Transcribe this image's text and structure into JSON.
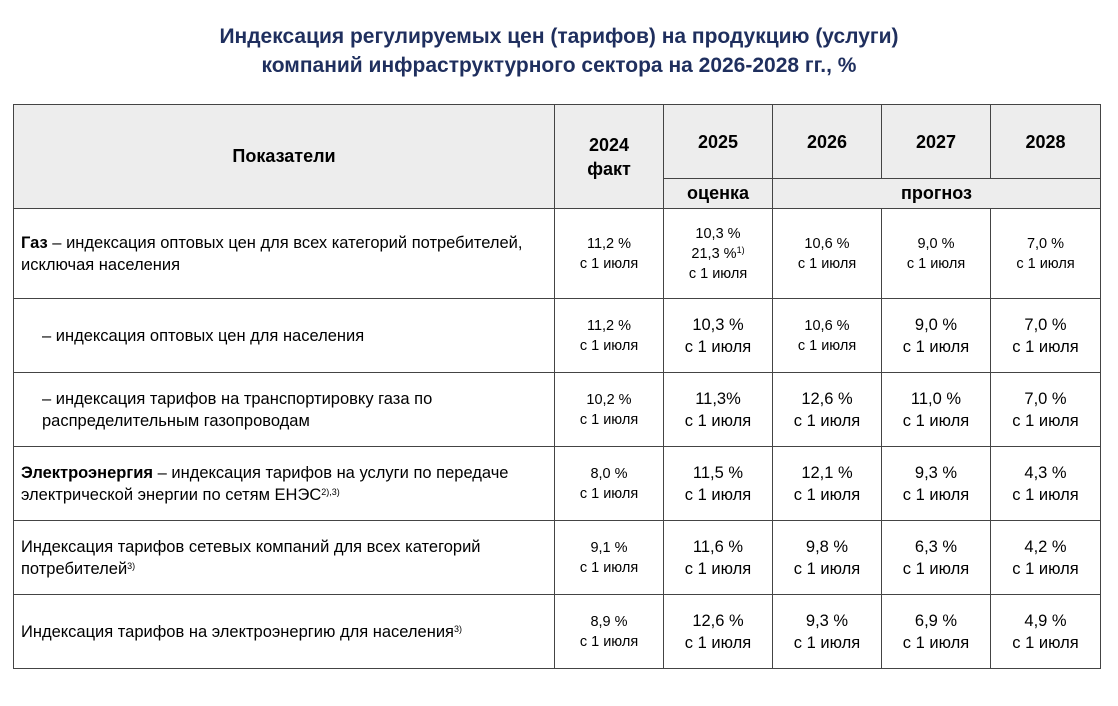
{
  "title": {
    "line1": "Индексация регулируемых цен (тарифов) на продукцию (услуги)",
    "line2": "компаний инфраструктурного сектора на 2026-2028 гг., %"
  },
  "header": {
    "indicators": "Показатели",
    "years": [
      {
        "year": "2024",
        "note": "факт"
      },
      {
        "year": "2025",
        "note": ""
      },
      {
        "year": "2026",
        "note": ""
      },
      {
        "year": "2027",
        "note": ""
      },
      {
        "year": "2028",
        "note": ""
      }
    ],
    "estimate": "оценка",
    "forecast": "прогноз"
  },
  "rows": [
    {
      "bold": "Газ",
      "text": " – индексация оптовых цен для всех категорий потребителей, исключая населения",
      "sup": "",
      "cells": [
        {
          "lines": [
            "11,2 %",
            "с 1 июля"
          ]
        },
        {
          "lines": [
            "10,3 %",
            "21,3 %",
            "с 1 июля"
          ],
          "sup": "1)"
        },
        {
          "lines": [
            "10,6 %",
            "с 1 июля"
          ]
        },
        {
          "lines": [
            "9,0 %",
            "с 1 июля"
          ]
        },
        {
          "lines": [
            "7,0 %",
            "с 1 июля"
          ]
        }
      ]
    },
    {
      "bold": "",
      "text": "– индексация оптовых цен для населения",
      "sup": "",
      "cells": [
        {
          "lines": [
            "11,2 %",
            "с 1 июля"
          ]
        },
        {
          "lines": [
            "10,3 %",
            "с 1 июля"
          ]
        },
        {
          "lines": [
            "10,6 %",
            "с 1 июля"
          ]
        },
        {
          "lines": [
            "9,0 %",
            "с 1 июля"
          ]
        },
        {
          "lines": [
            "7,0 %",
            "с 1 июля"
          ]
        }
      ]
    },
    {
      "bold": "",
      "text": "– индексация тарифов на транспортировку газа по распределительным газопроводам",
      "sup": "",
      "cells": [
        {
          "lines": [
            "10,2 %",
            "с 1 июля"
          ]
        },
        {
          "lines": [
            "11,3%",
            "с 1 июля"
          ]
        },
        {
          "lines": [
            "12,6 %",
            "с 1 июля"
          ]
        },
        {
          "lines": [
            "11,0 %",
            "с 1 июля"
          ]
        },
        {
          "lines": [
            "7,0 %",
            "с 1 июля"
          ]
        }
      ]
    },
    {
      "bold": "Электроэнергия",
      "text": " – индексация тарифов на услуги по передаче электрической энергии по сетям ЕНЭС",
      "sup": "2),3)",
      "cells": [
        {
          "lines": [
            "8,0 %",
            "с 1 июля"
          ]
        },
        {
          "lines": [
            "11,5 %",
            "с 1 июля"
          ]
        },
        {
          "lines": [
            "12,1 %",
            "с 1 июля"
          ]
        },
        {
          "lines": [
            "9,3 %",
            "с 1 июля"
          ]
        },
        {
          "lines": [
            "4,3 %",
            "с 1 июля"
          ]
        }
      ]
    },
    {
      "bold": "",
      "text": "Индексация тарифов сетевых компаний для всех категорий потребителей",
      "sup": "3)",
      "cells": [
        {
          "lines": [
            "9,1 %",
            "с 1 июля"
          ]
        },
        {
          "lines": [
            "11,6 %",
            "с 1 июля"
          ]
        },
        {
          "lines": [
            "9,8 %",
            "с 1 июля"
          ]
        },
        {
          "lines": [
            "6,3 %",
            "с 1 июля"
          ]
        },
        {
          "lines": [
            "4,2 %",
            "с 1 июля"
          ]
        }
      ]
    },
    {
      "bold": "",
      "text": "Индексация тарифов на электроэнергию для населения",
      "sup": "3)",
      "cells": [
        {
          "lines": [
            "8,9 %",
            "с 1 июля"
          ]
        },
        {
          "lines": [
            "12,6 %",
            "с 1 июля"
          ]
        },
        {
          "lines": [
            "9,3 %",
            "с 1 июля"
          ]
        },
        {
          "lines": [
            "6,9 %",
            "с 1 июля"
          ]
        },
        {
          "lines": [
            "4,9 %",
            "с 1 июля"
          ]
        }
      ]
    }
  ]
}
